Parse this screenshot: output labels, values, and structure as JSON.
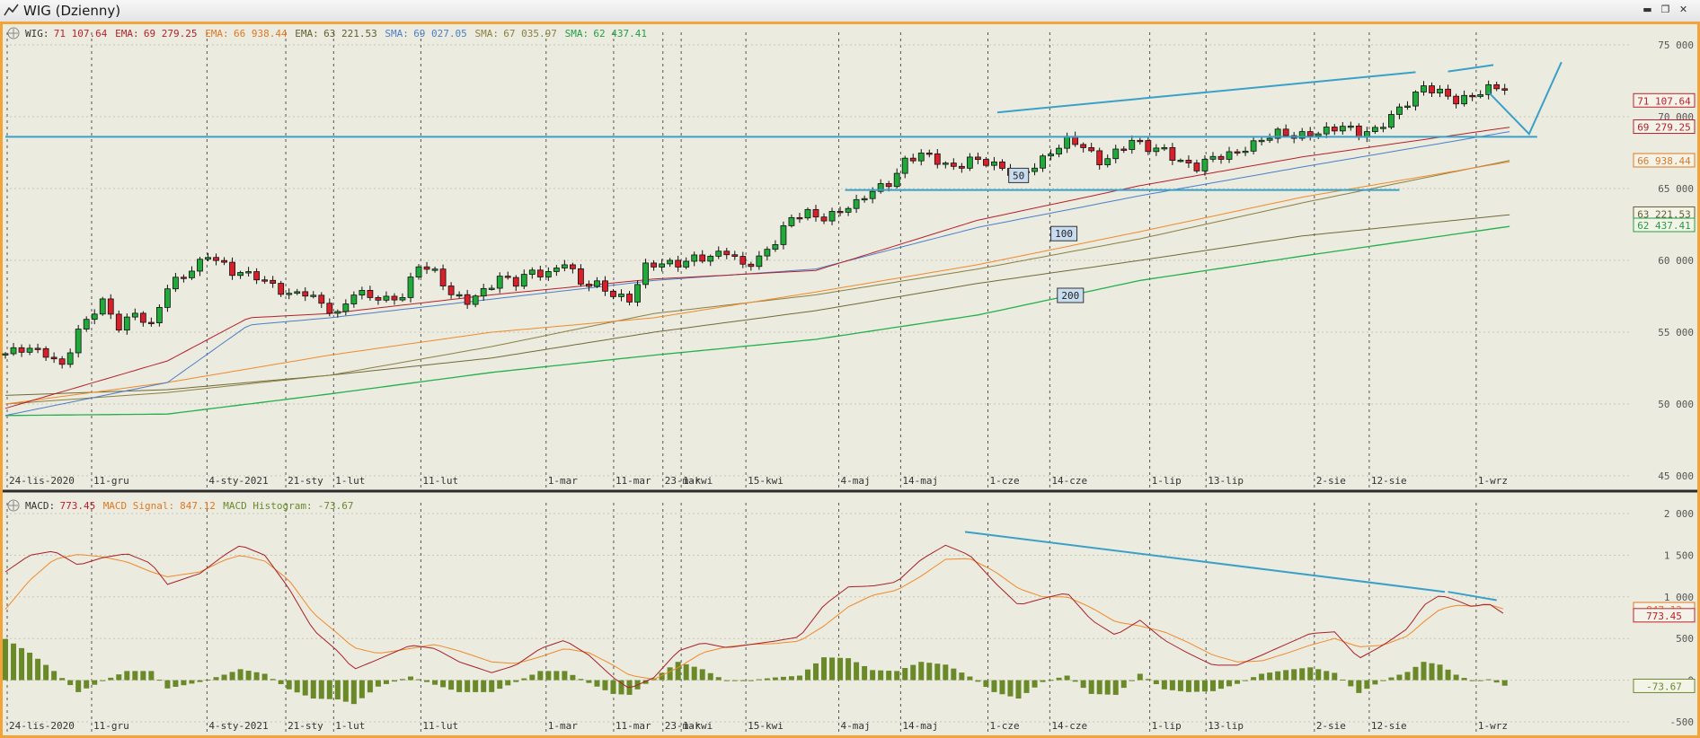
{
  "window": {
    "title": "WIG (Dzienny)",
    "buttons": [
      "minimize",
      "restore",
      "close"
    ]
  },
  "price_panel": {
    "legend": [
      {
        "name": "WIG:",
        "value": "71 107.64",
        "color": "#c0202a"
      },
      {
        "name": "EMA:",
        "value": "69 279.25",
        "color": "#b5202a"
      },
      {
        "name": "EMA:",
        "value": "66 938.44",
        "color": "#e07820"
      },
      {
        "name": "EMA:",
        "value": "63 221.53",
        "color": "#606030"
      },
      {
        "name": "SMA:",
        "value": "69 027.05",
        "color": "#4a7fc8"
      },
      {
        "name": "SMA:",
        "value": "67 035.97",
        "color": "#8a8040"
      },
      {
        "name": "SMA:",
        "value": "62 437.41",
        "color": "#20a040"
      }
    ],
    "y_ticks": [
      "75 000",
      "70 000",
      "65 000",
      "60 000",
      "55 000",
      "50 000",
      "45 000"
    ],
    "value_labels": [
      {
        "text": "71 107.64",
        "color": "#c0202a",
        "y": 71107.64
      },
      {
        "text": "69 279.25",
        "color": "#b5202a",
        "y": 69279.25
      },
      {
        "text": "66 938.44",
        "color": "#e07820",
        "y": 66938.44
      },
      {
        "text": "63 221.53",
        "color": "#606030",
        "y": 63221.53
      },
      {
        "text": "62 437.41",
        "color": "#20a040",
        "y": 62437.41
      }
    ],
    "ma_tags": [
      {
        "text": "50",
        "x": 0.619,
        "y": 65850
      },
      {
        "text": "100",
        "x": 0.645,
        "y": 61800
      },
      {
        "text": "200",
        "x": 0.649,
        "y": 57500
      }
    ]
  },
  "macd_panel": {
    "legend": [
      {
        "name": "MACD:",
        "value": "773.45",
        "color": "#c0202a"
      },
      {
        "name": "MACD Signal:",
        "value": "847.12",
        "color": "#e07820"
      },
      {
        "name": "MACD Histogram:",
        "value": "-73.67",
        "color": "#6a8a2a"
      }
    ],
    "y_ticks": [
      "2 000",
      "1 500",
      "1 000",
      "500",
      "0",
      "-500"
    ],
    "value_labels": [
      {
        "text": "847.12",
        "color": "#e07820",
        "y": 847.12
      },
      {
        "text": "773.45",
        "color": "#c0202a",
        "y": 773.45
      },
      {
        "text": "-73.67",
        "color": "#6a8a2a",
        "y": -73.67
      }
    ]
  },
  "x_labels": [
    "24-lis-2020",
    "11-gru",
    "4-sty-2021",
    "21-sty",
    "1-lut",
    "11-lut",
    "1-mar",
    "11-mar",
    "23-mar",
    "1-kwi",
    "15-kwi",
    "4-maj",
    "14-maj",
    "1-cze",
    "14-cze",
    "1-lip",
    "13-lip",
    "2-sie",
    "12-sie",
    "1-wrz"
  ],
  "chart_data": [
    {
      "type": "candlestick",
      "title": "WIG (Dzienny)",
      "ylim": [
        45000,
        75000
      ],
      "x_range": [
        0,
        1
      ],
      "close_anchors": [
        [
          0,
          53500
        ],
        [
          0.012,
          53700
        ],
        [
          0.025,
          53600
        ],
        [
          0.035,
          52800
        ],
        [
          0.045,
          55000
        ],
        [
          0.06,
          57000
        ],
        [
          0.07,
          55500
        ],
        [
          0.08,
          56500
        ],
        [
          0.09,
          55300
        ],
        [
          0.1,
          58000
        ],
        [
          0.115,
          59500
        ],
        [
          0.125,
          60500
        ],
        [
          0.14,
          59000
        ],
        [
          0.155,
          59000
        ],
        [
          0.165,
          58400
        ],
        [
          0.175,
          57500
        ],
        [
          0.185,
          57600
        ],
        [
          0.195,
          57000
        ],
        [
          0.205,
          56400
        ],
        [
          0.215,
          57800
        ],
        [
          0.225,
          57300
        ],
        [
          0.235,
          57200
        ],
        [
          0.245,
          57700
        ],
        [
          0.255,
          59800
        ],
        [
          0.265,
          59000
        ],
        [
          0.275,
          57500
        ],
        [
          0.285,
          57300
        ],
        [
          0.295,
          58000
        ],
        [
          0.305,
          58700
        ],
        [
          0.315,
          58300
        ],
        [
          0.325,
          59300
        ],
        [
          0.335,
          59200
        ],
        [
          0.345,
          59900
        ],
        [
          0.355,
          58200
        ],
        [
          0.365,
          58300
        ],
        [
          0.375,
          57800
        ],
        [
          0.385,
          57300
        ],
        [
          0.395,
          59400
        ],
        [
          0.405,
          59700
        ],
        [
          0.415,
          59900
        ],
        [
          0.425,
          60300
        ],
        [
          0.435,
          60100
        ],
        [
          0.445,
          60500
        ],
        [
          0.455,
          59700
        ],
        [
          0.465,
          60300
        ],
        [
          0.475,
          61300
        ],
        [
          0.485,
          62800
        ],
        [
          0.495,
          63300
        ],
        [
          0.505,
          63100
        ],
        [
          0.515,
          63500
        ],
        [
          0.525,
          63800
        ],
        [
          0.535,
          64800
        ],
        [
          0.545,
          65500
        ],
        [
          0.555,
          67000
        ],
        [
          0.565,
          67300
        ],
        [
          0.575,
          66800
        ],
        [
          0.585,
          66500
        ],
        [
          0.595,
          67200
        ],
        [
          0.605,
          66800
        ],
        [
          0.615,
          66200
        ],
        [
          0.625,
          65900
        ],
        [
          0.635,
          66800
        ],
        [
          0.645,
          67500
        ],
        [
          0.655,
          68200
        ],
        [
          0.665,
          67900
        ],
        [
          0.675,
          67000
        ],
        [
          0.685,
          67600
        ],
        [
          0.695,
          68200
        ],
        [
          0.705,
          67700
        ],
        [
          0.715,
          67800
        ],
        [
          0.725,
          67000
        ],
        [
          0.735,
          66400
        ],
        [
          0.745,
          67000
        ],
        [
          0.755,
          67400
        ],
        [
          0.765,
          68000
        ],
        [
          0.775,
          68400
        ],
        [
          0.785,
          68700
        ],
        [
          0.795,
          68600
        ],
        [
          0.805,
          69000
        ],
        [
          0.815,
          69100
        ],
        [
          0.825,
          69200
        ],
        [
          0.835,
          68700
        ],
        [
          0.845,
          69200
        ],
        [
          0.855,
          70200
        ],
        [
          0.865,
          70900
        ],
        [
          0.875,
          71900
        ],
        [
          0.885,
          71800
        ],
        [
          0.895,
          71300
        ],
        [
          0.905,
          71400
        ],
        [
          0.915,
          71800
        ],
        [
          0.925,
          72000
        ]
      ],
      "sma200": [
        [
          0,
          49200
        ],
        [
          0.1,
          49300
        ],
        [
          0.2,
          50700
        ],
        [
          0.3,
          52200
        ],
        [
          0.4,
          53400
        ],
        [
          0.5,
          54500
        ],
        [
          0.6,
          56200
        ],
        [
          0.7,
          58600
        ],
        [
          0.8,
          60300
        ],
        [
          0.93,
          62400
        ]
      ],
      "ema200": [
        [
          0,
          50600
        ],
        [
          0.1,
          51000
        ],
        [
          0.2,
          52000
        ],
        [
          0.3,
          53200
        ],
        [
          0.4,
          55000
        ],
        [
          0.5,
          56500
        ],
        [
          0.6,
          58400
        ],
        [
          0.7,
          60000
        ],
        [
          0.8,
          61700
        ],
        [
          0.93,
          63200
        ]
      ],
      "sma100": [
        [
          0,
          50000
        ],
        [
          0.1,
          50800
        ],
        [
          0.2,
          52000
        ],
        [
          0.3,
          54000
        ],
        [
          0.4,
          56300
        ],
        [
          0.5,
          57600
        ],
        [
          0.6,
          59400
        ],
        [
          0.7,
          61500
        ],
        [
          0.8,
          64000
        ],
        [
          0.93,
          67000
        ]
      ],
      "ema100": [
        [
          0,
          50000
        ],
        [
          0.1,
          51500
        ],
        [
          0.2,
          53400
        ],
        [
          0.3,
          55000
        ],
        [
          0.4,
          56000
        ],
        [
          0.5,
          57800
        ],
        [
          0.6,
          59700
        ],
        [
          0.7,
          62000
        ],
        [
          0.8,
          64400
        ],
        [
          0.93,
          66900
        ]
      ],
      "sma50": [
        [
          0,
          49200
        ],
        [
          0.1,
          51500
        ],
        [
          0.15,
          55500
        ],
        [
          0.2,
          56000
        ],
        [
          0.3,
          57300
        ],
        [
          0.4,
          58600
        ],
        [
          0.5,
          59400
        ],
        [
          0.6,
          62300
        ],
        [
          0.7,
          64500
        ],
        [
          0.8,
          66500
        ],
        [
          0.93,
          69000
        ]
      ],
      "ema50": [
        [
          0,
          49700
        ],
        [
          0.1,
          53000
        ],
        [
          0.15,
          56000
        ],
        [
          0.2,
          56300
        ],
        [
          0.3,
          57600
        ],
        [
          0.4,
          58700
        ],
        [
          0.5,
          59300
        ],
        [
          0.6,
          62800
        ],
        [
          0.7,
          65200
        ],
        [
          0.8,
          67200
        ],
        [
          0.93,
          69300
        ]
      ],
      "trendlines": [
        {
          "points": [
            [
              0.612,
              70300
            ],
            [
              0.87,
              73100
            ]
          ]
        },
        {
          "points": [
            [
              0.89,
              73150
            ],
            [
              0.918,
              73600
            ]
          ]
        },
        {
          "points": [
            [
              0,
              68600
            ],
            [
              0.945,
              68600
            ]
          ]
        },
        {
          "points": [
            [
              0.518,
              64900
            ],
            [
              0.86,
              64900
            ]
          ]
        },
        {
          "points": [
            [
              0.915,
              71700
            ],
            [
              0.94,
              68800
            ],
            [
              0.96,
              73800
            ]
          ]
        }
      ]
    },
    {
      "type": "line",
      "title": "MACD",
      "ylim": [
        -500,
        2000
      ],
      "macd": [
        [
          0,
          1300
        ],
        [
          0.015,
          1500
        ],
        [
          0.03,
          1550
        ],
        [
          0.045,
          1380
        ],
        [
          0.06,
          1470
        ],
        [
          0.075,
          1520
        ],
        [
          0.09,
          1400
        ],
        [
          0.1,
          1150
        ],
        [
          0.12,
          1280
        ],
        [
          0.135,
          1500
        ],
        [
          0.145,
          1620
        ],
        [
          0.16,
          1500
        ],
        [
          0.175,
          1100
        ],
        [
          0.19,
          600
        ],
        [
          0.205,
          350
        ],
        [
          0.215,
          130
        ],
        [
          0.23,
          250
        ],
        [
          0.25,
          420
        ],
        [
          0.265,
          380
        ],
        [
          0.28,
          220
        ],
        [
          0.3,
          90
        ],
        [
          0.315,
          180
        ],
        [
          0.33,
          380
        ],
        [
          0.345,
          480
        ],
        [
          0.36,
          300
        ],
        [
          0.375,
          30
        ],
        [
          0.385,
          -100
        ],
        [
          0.4,
          30
        ],
        [
          0.415,
          350
        ],
        [
          0.43,
          450
        ],
        [
          0.445,
          390
        ],
        [
          0.46,
          430
        ],
        [
          0.475,
          470
        ],
        [
          0.49,
          520
        ],
        [
          0.505,
          900
        ],
        [
          0.52,
          1120
        ],
        [
          0.535,
          1130
        ],
        [
          0.55,
          1180
        ],
        [
          0.565,
          1450
        ],
        [
          0.58,
          1620
        ],
        [
          0.595,
          1500
        ],
        [
          0.61,
          1180
        ],
        [
          0.625,
          900
        ],
        [
          0.64,
          980
        ],
        [
          0.655,
          1050
        ],
        [
          0.67,
          720
        ],
        [
          0.685,
          540
        ],
        [
          0.7,
          720
        ],
        [
          0.715,
          480
        ],
        [
          0.73,
          320
        ],
        [
          0.745,
          180
        ],
        [
          0.76,
          180
        ],
        [
          0.775,
          300
        ],
        [
          0.79,
          430
        ],
        [
          0.805,
          560
        ],
        [
          0.82,
          580
        ],
        [
          0.835,
          260
        ],
        [
          0.85,
          420
        ],
        [
          0.865,
          620
        ],
        [
          0.875,
          900
        ],
        [
          0.885,
          1020
        ],
        [
          0.895,
          960
        ],
        [
          0.905,
          880
        ],
        [
          0.915,
          920
        ],
        [
          0.925,
          790
        ]
      ],
      "signal": [
        [
          0,
          850
        ],
        [
          0.015,
          1200
        ],
        [
          0.03,
          1450
        ],
        [
          0.045,
          1510
        ],
        [
          0.06,
          1480
        ],
        [
          0.075,
          1420
        ],
        [
          0.09,
          1300
        ],
        [
          0.1,
          1240
        ],
        [
          0.12,
          1300
        ],
        [
          0.135,
          1440
        ],
        [
          0.145,
          1500
        ],
        [
          0.16,
          1430
        ],
        [
          0.175,
          1200
        ],
        [
          0.19,
          800
        ],
        [
          0.205,
          560
        ],
        [
          0.215,
          390
        ],
        [
          0.23,
          320
        ],
        [
          0.25,
          380
        ],
        [
          0.265,
          430
        ],
        [
          0.28,
          350
        ],
        [
          0.3,
          220
        ],
        [
          0.315,
          200
        ],
        [
          0.33,
          280
        ],
        [
          0.345,
          380
        ],
        [
          0.36,
          330
        ],
        [
          0.375,
          180
        ],
        [
          0.385,
          60
        ],
        [
          0.4,
          10
        ],
        [
          0.415,
          150
        ],
        [
          0.43,
          330
        ],
        [
          0.445,
          400
        ],
        [
          0.46,
          430
        ],
        [
          0.475,
          440
        ],
        [
          0.49,
          470
        ],
        [
          0.505,
          650
        ],
        [
          0.52,
          880
        ],
        [
          0.535,
          1020
        ],
        [
          0.55,
          1080
        ],
        [
          0.565,
          1250
        ],
        [
          0.58,
          1450
        ],
        [
          0.595,
          1460
        ],
        [
          0.61,
          1310
        ],
        [
          0.625,
          1100
        ],
        [
          0.64,
          1000
        ],
        [
          0.655,
          1000
        ],
        [
          0.67,
          870
        ],
        [
          0.685,
          700
        ],
        [
          0.7,
          650
        ],
        [
          0.715,
          580
        ],
        [
          0.73,
          450
        ],
        [
          0.745,
          300
        ],
        [
          0.76,
          220
        ],
        [
          0.775,
          230
        ],
        [
          0.79,
          320
        ],
        [
          0.805,
          420
        ],
        [
          0.82,
          500
        ],
        [
          0.835,
          400
        ],
        [
          0.85,
          420
        ],
        [
          0.865,
          530
        ],
        [
          0.875,
          700
        ],
        [
          0.885,
          850
        ],
        [
          0.895,
          900
        ],
        [
          0.905,
          890
        ],
        [
          0.915,
          910
        ],
        [
          0.925,
          850
        ]
      ],
      "trendlines": [
        {
          "points": [
            [
              0.592,
              1780
            ],
            [
              0.888,
              1060
            ]
          ]
        },
        {
          "points": [
            [
              0.89,
              1060
            ],
            [
              0.92,
              960
            ]
          ]
        }
      ]
    }
  ]
}
